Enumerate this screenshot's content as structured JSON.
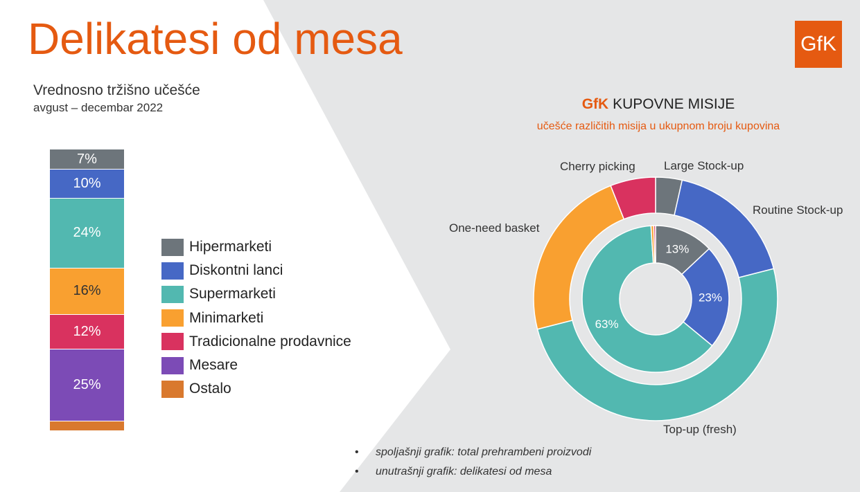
{
  "header": {
    "title": "Delikatesi od mesa",
    "subtitle": "Vrednosno tržišno učešće",
    "period": "avgust – decembar 2022"
  },
  "logo": {
    "text": "GfK",
    "color": "#e55a11"
  },
  "chart_data": [
    {
      "type": "bar",
      "stacked": true,
      "values": [
        7,
        10,
        24,
        16,
        12,
        25,
        3
      ],
      "labels": [
        "7%",
        "10%",
        "24%",
        "16%",
        "12%",
        "25%",
        ""
      ],
      "legend": [
        "Hipermarketi",
        "Diskontni lanci",
        "Supermarketi",
        "Minimarketi",
        "Tradicionalne prodavnice",
        "Mesare",
        "Ostalo"
      ],
      "colors": [
        "#6d757b",
        "#4668c5",
        "#52b8b0",
        "#f9a030",
        "#d9325f",
        "#7c4bb6",
        "#d9792e"
      ],
      "label_colors": [
        "#ffffff",
        "#ffffff",
        "#ffffff",
        "#333333",
        "#ffffff",
        "#ffffff",
        "#ffffff"
      ]
    },
    {
      "type": "pie",
      "title_brand": "GfK",
      "title": "KUPOVNE MISIJE",
      "subtitle": "učešće različitih misija u ukupnom broju kupovina",
      "outer": {
        "categories": [
          "Large Stock-up",
          "Routine Stock-up",
          "Top-up (fresh)",
          "One-need basket",
          "Cherry picking"
        ],
        "values": [
          3.5,
          17.5,
          50,
          23,
          6
        ],
        "colors": [
          "#6d757b",
          "#4668c5",
          "#52b8b0",
          "#f9a030",
          "#d9325f"
        ]
      },
      "inner": {
        "categories": [
          "Large Stock-up",
          "Routine Stock-up",
          "Top-up (fresh)",
          "One-need basket",
          "Cherry picking"
        ],
        "values": [
          13,
          23,
          63,
          0.6,
          0.4
        ],
        "labels": [
          "13%",
          "23%",
          "63%",
          "",
          ""
        ],
        "colors": [
          "#6d757b",
          "#4668c5",
          "#52b8b0",
          "#f9a030",
          "#d9325f"
        ]
      }
    }
  ],
  "notes": [
    "spoljašnji grafik: total prehrambeni proizvodi",
    "unutrašnji grafik: delikatesi od mesa"
  ],
  "bullet": "•"
}
